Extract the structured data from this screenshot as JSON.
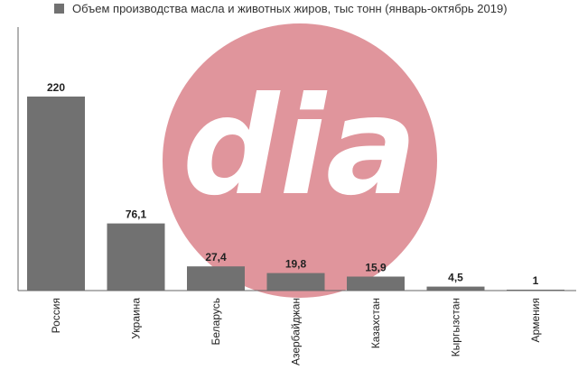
{
  "chart_data": {
    "type": "bar",
    "legend": "Объем производства масла и животных жиров, тыс тонн  (январь-октябрь 2019)",
    "legend_position": "top-left",
    "categories": [
      "Россия",
      "Украина",
      "Беларусь",
      "Азербайджан",
      "Казахстан",
      "Кыргызстан",
      "Армения"
    ],
    "values": [
      220,
      76.1,
      27.4,
      19.8,
      15.9,
      4.5,
      1
    ],
    "value_labels": [
      "220",
      "76,1",
      "27,4",
      "19,8",
      "15,9",
      "4,5",
      "1"
    ],
    "ylim": [
      0,
      220
    ],
    "grid": false,
    "colors": {
      "bar": "#717171",
      "axis": "#666666",
      "watermark_circle": "#e0959c",
      "watermark_text": "#ffffff"
    }
  },
  "watermark": {
    "text": "dia"
  }
}
